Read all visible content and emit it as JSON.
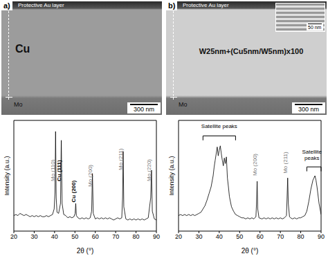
{
  "images": [
    {
      "label": "a)",
      "top_label": "Protective Au layer",
      "layer": "Cu",
      "substrate": "Mo",
      "scale_bar": "300 nm"
    },
    {
      "label": "b)",
      "top_label": "Protective Au layer",
      "layer": "W25nm+(Cu5nm/W5nm)x100",
      "substrate": "Mo",
      "scale_bar": "300 nm",
      "inset_scale_bar": "50 nm"
    }
  ],
  "chart_data": [
    {
      "type": "line",
      "color": "#000000",
      "xlabel": "2θ (°)",
      "ylabel": "Intensity (a.u.)",
      "tick_labels": "x",
      "grid": false,
      "xlim": [
        20,
        90
      ],
      "xticks": [
        20,
        30,
        40,
        50,
        60,
        70,
        80,
        90
      ],
      "ylim": [
        0,
        100
      ],
      "x": [
        20,
        21,
        22,
        23,
        24,
        25,
        26,
        27,
        28,
        29,
        30,
        31,
        32,
        33,
        34,
        35,
        36,
        37,
        38,
        39,
        39.8,
        40.2,
        40.5,
        40.8,
        41.2,
        42,
        42.9,
        43.3,
        43.7,
        44.5,
        45.5,
        46.5,
        47.5,
        48.5,
        49.5,
        50.1,
        50.4,
        50.7,
        51.5,
        52.5,
        53.5,
        54.5,
        55.5,
        56.5,
        57.5,
        58.2,
        58.6,
        59,
        60,
        61,
        62,
        63,
        64,
        65,
        66,
        67,
        68,
        69,
        70,
        71,
        72,
        73,
        73.4,
        73.7,
        74,
        75,
        76,
        77,
        78,
        79,
        80,
        81,
        82,
        83,
        84,
        85,
        86,
        87.2,
        87.6,
        88,
        89,
        90
      ],
      "values": [
        14,
        15,
        14,
        16,
        15,
        14,
        15,
        14,
        13,
        14,
        13,
        14,
        13,
        14,
        13,
        13,
        14,
        13,
        14,
        15,
        20,
        35,
        90,
        30,
        17,
        16,
        25,
        82,
        25,
        15,
        14,
        12,
        13,
        12,
        13,
        16,
        25,
        14,
        12,
        11,
        12,
        11,
        12,
        11,
        12,
        18,
        52,
        16,
        11,
        12,
        11,
        12,
        11,
        12,
        11,
        12,
        11,
        10,
        11,
        12,
        11,
        12,
        30,
        72,
        22,
        11,
        10,
        11,
        10,
        11,
        10,
        11,
        10,
        11,
        10,
        11,
        12,
        30,
        55,
        18,
        11,
        10
      ],
      "peak_labels": [
        {
          "text": "Mo (110)",
          "x": 39.2,
          "y": 45,
          "color": "#777777"
        },
        {
          "text": "Cu (111)",
          "x": 42.2,
          "y": 45,
          "color": "#000000"
        },
        {
          "text": "Cu (200)",
          "x": 49.3,
          "y": 26,
          "color": "#000000"
        },
        {
          "text": "Mo (200)",
          "x": 57.4,
          "y": 40,
          "color": "#777777"
        },
        {
          "text": "Mo (211)",
          "x": 72.5,
          "y": 55,
          "color": "#777777"
        },
        {
          "text": "Mo (220)",
          "x": 86.4,
          "y": 45,
          "color": "#777777"
        }
      ]
    },
    {
      "type": "line",
      "color": "#000000",
      "xlabel": "2θ (°)",
      "ylabel": "Intensity (a.u.)",
      "tick_labels": "x",
      "grid": false,
      "xlim": [
        20,
        90
      ],
      "xticks": [
        20,
        30,
        40,
        50,
        60,
        70,
        80,
        90
      ],
      "ylim": [
        0,
        100
      ],
      "x": [
        20,
        21,
        22,
        23,
        24,
        25,
        26,
        27,
        28,
        29,
        30,
        31,
        32,
        33,
        34,
        35,
        36,
        37,
        37.5,
        38,
        38.5,
        39,
        39.5,
        40,
        40.5,
        41,
        41.5,
        42,
        42.5,
        43,
        43.5,
        44,
        44.5,
        45,
        46,
        47,
        48,
        49,
        50,
        51,
        52,
        53,
        54,
        55,
        56,
        57,
        58,
        58.3,
        58.6,
        58.9,
        59.5,
        61,
        62,
        63,
        64,
        65,
        66,
        67,
        68,
        69,
        70,
        71,
        72,
        73,
        73.3,
        73.6,
        73.9,
        74.5,
        75,
        76,
        77,
        78,
        79,
        80,
        81,
        82,
        83,
        84,
        85,
        86,
        86.5,
        87,
        87.5,
        88,
        89,
        90
      ],
      "values": [
        14,
        15,
        14,
        15,
        14,
        15,
        14,
        15,
        14,
        15,
        16,
        17,
        20,
        23,
        28,
        34,
        40,
        50,
        58,
        64,
        70,
        76,
        68,
        73,
        77,
        70,
        64,
        59,
        66,
        61,
        67,
        48,
        40,
        31,
        22,
        18,
        15,
        14,
        13,
        12,
        12,
        11,
        12,
        11,
        12,
        11,
        13,
        25,
        45,
        20,
        12,
        11,
        12,
        11,
        12,
        11,
        12,
        11,
        12,
        11,
        12,
        11,
        12,
        14,
        30,
        48,
        25,
        13,
        12,
        11,
        12,
        11,
        12,
        12,
        13,
        14,
        18,
        27,
        38,
        46,
        48,
        50,
        46,
        40,
        25,
        15
      ],
      "peak_labels": [
        {
          "text": "Mo (200)",
          "x": 57.4,
          "y": 50,
          "color": "#777777"
        },
        {
          "text": "Mo (211)",
          "x": 72.5,
          "y": 52,
          "color": "#777777"
        }
      ],
      "annotations": [
        {
          "text": "Satellite peaks",
          "x": 40,
          "y": 93,
          "span": [
            32,
            48
          ],
          "span_y": 86
        },
        {
          "text": "Satellite\npeaks",
          "x": 85.5,
          "y": 70,
          "span": [
            83,
            90
          ],
          "span_y": 58
        }
      ]
    }
  ]
}
